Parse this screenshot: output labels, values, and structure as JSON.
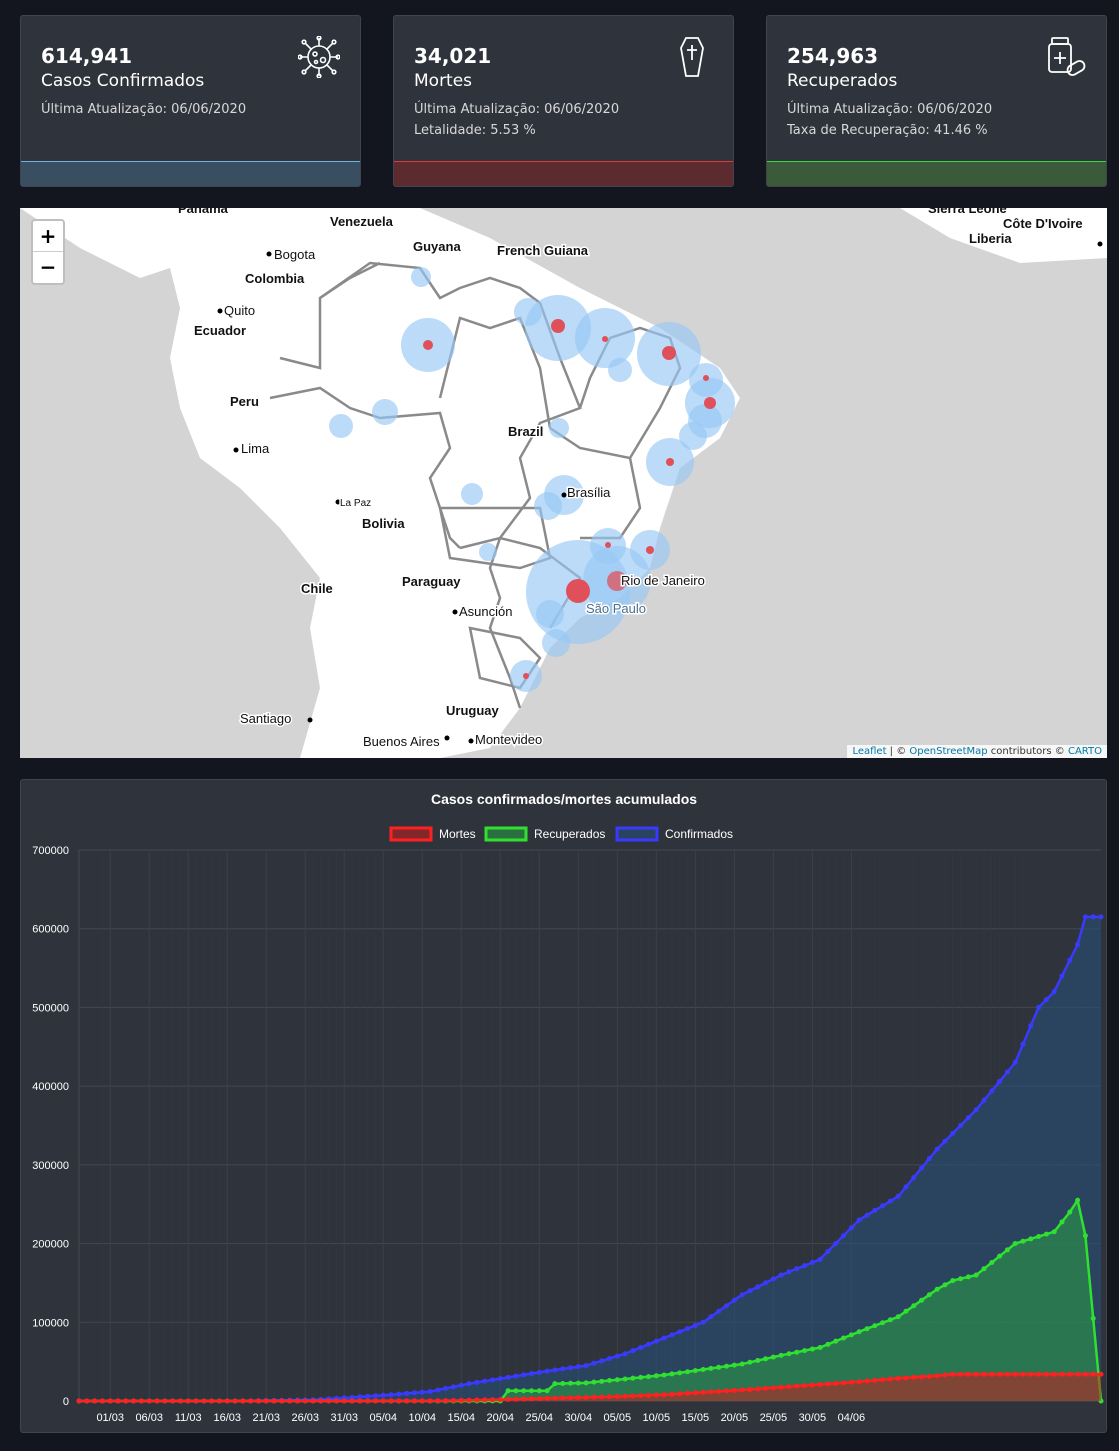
{
  "cards": [
    {
      "value": "614,941",
      "label": "Casos Confirmados",
      "meta1": "Última Atualização: 06/06/2020",
      "meta2": "",
      "icon": "virus-icon",
      "bar_color": "#3a4e62",
      "line_color": "#6fb2e0"
    },
    {
      "value": "34,021",
      "label": "Mortes",
      "meta1": "Última Atualização: 06/06/2020",
      "meta2": "Letalidade: 5.53 %",
      "icon": "coffin-icon",
      "bar_color": "#5c2b2f",
      "line_color": "#e03a3a"
    },
    {
      "value": "254,963",
      "label": "Recuperados",
      "meta1": "Última Atualização: 06/06/2020",
      "meta2": "Taxa de Recuperação: 41.46 %",
      "icon": "medicine-icon",
      "bar_color": "#3a5a3a",
      "line_color": "#3ad83a"
    }
  ],
  "map": {
    "zoom_in": "+",
    "zoom_out": "−",
    "attribution": {
      "leaflet": "Leaflet",
      "sep": " | © ",
      "osm": "OpenStreetMap",
      "mid": " contributors © ",
      "carto": "CARTO"
    },
    "labels": [
      "Panamá",
      "Venezuela",
      "Guyana",
      "French Guiana",
      "Bogota",
      "Colombia",
      "Quito",
      "Ecuador",
      "Peru",
      "Lima",
      "Brazil",
      "Brasília",
      "La Paz",
      "Bolivia",
      "Paraguay",
      "Chile",
      "Rio de Janeiro",
      "São Paulo",
      "Asunción",
      "Santiago",
      "Uruguay",
      "Buenos Aires",
      "Montevideo",
      "Sierra Leone",
      "Côte D'Ivoire",
      "Liberia"
    ]
  },
  "chart_data": {
    "type": "line",
    "title": "Casos confirmados/mortes acumulados",
    "ylim": [
      0,
      700000
    ],
    "yticks": [
      "700000",
      "600000",
      "500000",
      "400000",
      "300000",
      "200000",
      "100000",
      "0"
    ],
    "x_tick_labels": [
      "01/03",
      "06/03",
      "11/03",
      "16/03",
      "21/03",
      "26/03",
      "31/03",
      "05/04",
      "10/04",
      "15/04",
      "20/04",
      "25/04",
      "30/04",
      "05/05",
      "10/05",
      "15/05",
      "20/05",
      "25/05",
      "30/05",
      "04/06"
    ],
    "x_start": "26/02",
    "x_end": "06/06",
    "series": [
      {
        "name": "Mortes",
        "color": "#ff2020",
        "fill": "rgba(200,30,30,0.55)",
        "anchors": [
          [
            0,
            0
          ],
          [
            20,
            0
          ],
          [
            35,
            10
          ],
          [
            45,
            200
          ],
          [
            50,
            1000
          ],
          [
            55,
            2000
          ],
          [
            60,
            3300
          ],
          [
            65,
            4500
          ],
          [
            70,
            6000
          ],
          [
            75,
            8000
          ],
          [
            80,
            11000
          ],
          [
            85,
            14000
          ],
          [
            90,
            17500
          ],
          [
            95,
            21000
          ],
          [
            100,
            24500
          ],
          [
            105,
            28800
          ],
          [
            110,
            32000
          ],
          [
            111,
            33000
          ],
          [
            112,
            34000
          ]
        ]
      },
      {
        "name": "Recuperados",
        "color": "#30e030",
        "fill": "rgba(40,160,70,0.55)",
        "anchors": [
          [
            0,
            0
          ],
          [
            54,
            0
          ],
          [
            55,
            13000
          ],
          [
            60,
            13000
          ],
          [
            61,
            22000
          ],
          [
            65,
            23000
          ],
          [
            70,
            28000
          ],
          [
            75,
            33000
          ],
          [
            80,
            40000
          ],
          [
            85,
            47000
          ],
          [
            90,
            58000
          ],
          [
            95,
            68000
          ],
          [
            100,
            88000
          ],
          [
            105,
            107000
          ],
          [
            110,
            142000
          ],
          [
            112,
            153000
          ],
          [
            115,
            160000
          ],
          [
            120,
            200000
          ],
          [
            125,
            215000
          ],
          [
            127,
            240000
          ],
          [
            128,
            255000
          ],
          [
            129,
            210000
          ],
          [
            131,
            0
          ]
        ]
      },
      {
        "name": "Confirmados",
        "color": "#3a3aff",
        "fill": "rgba(40,80,120,0.6)",
        "anchors": [
          [
            0,
            0
          ],
          [
            20,
            10
          ],
          [
            30,
            1500
          ],
          [
            35,
            4500
          ],
          [
            40,
            8000
          ],
          [
            45,
            12000
          ],
          [
            50,
            22000
          ],
          [
            55,
            30000
          ],
          [
            60,
            38000
          ],
          [
            65,
            45000
          ],
          [
            70,
            60000
          ],
          [
            75,
            80000
          ],
          [
            80,
            100000
          ],
          [
            85,
            135000
          ],
          [
            90,
            160000
          ],
          [
            95,
            180000
          ],
          [
            100,
            230000
          ],
          [
            105,
            260000
          ],
          [
            110,
            320000
          ],
          [
            115,
            370000
          ],
          [
            120,
            430000
          ],
          [
            123,
            500000
          ],
          [
            125,
            520000
          ],
          [
            128,
            580000
          ],
          [
            129,
            615000
          ],
          [
            131,
            615000
          ]
        ]
      }
    ]
  }
}
